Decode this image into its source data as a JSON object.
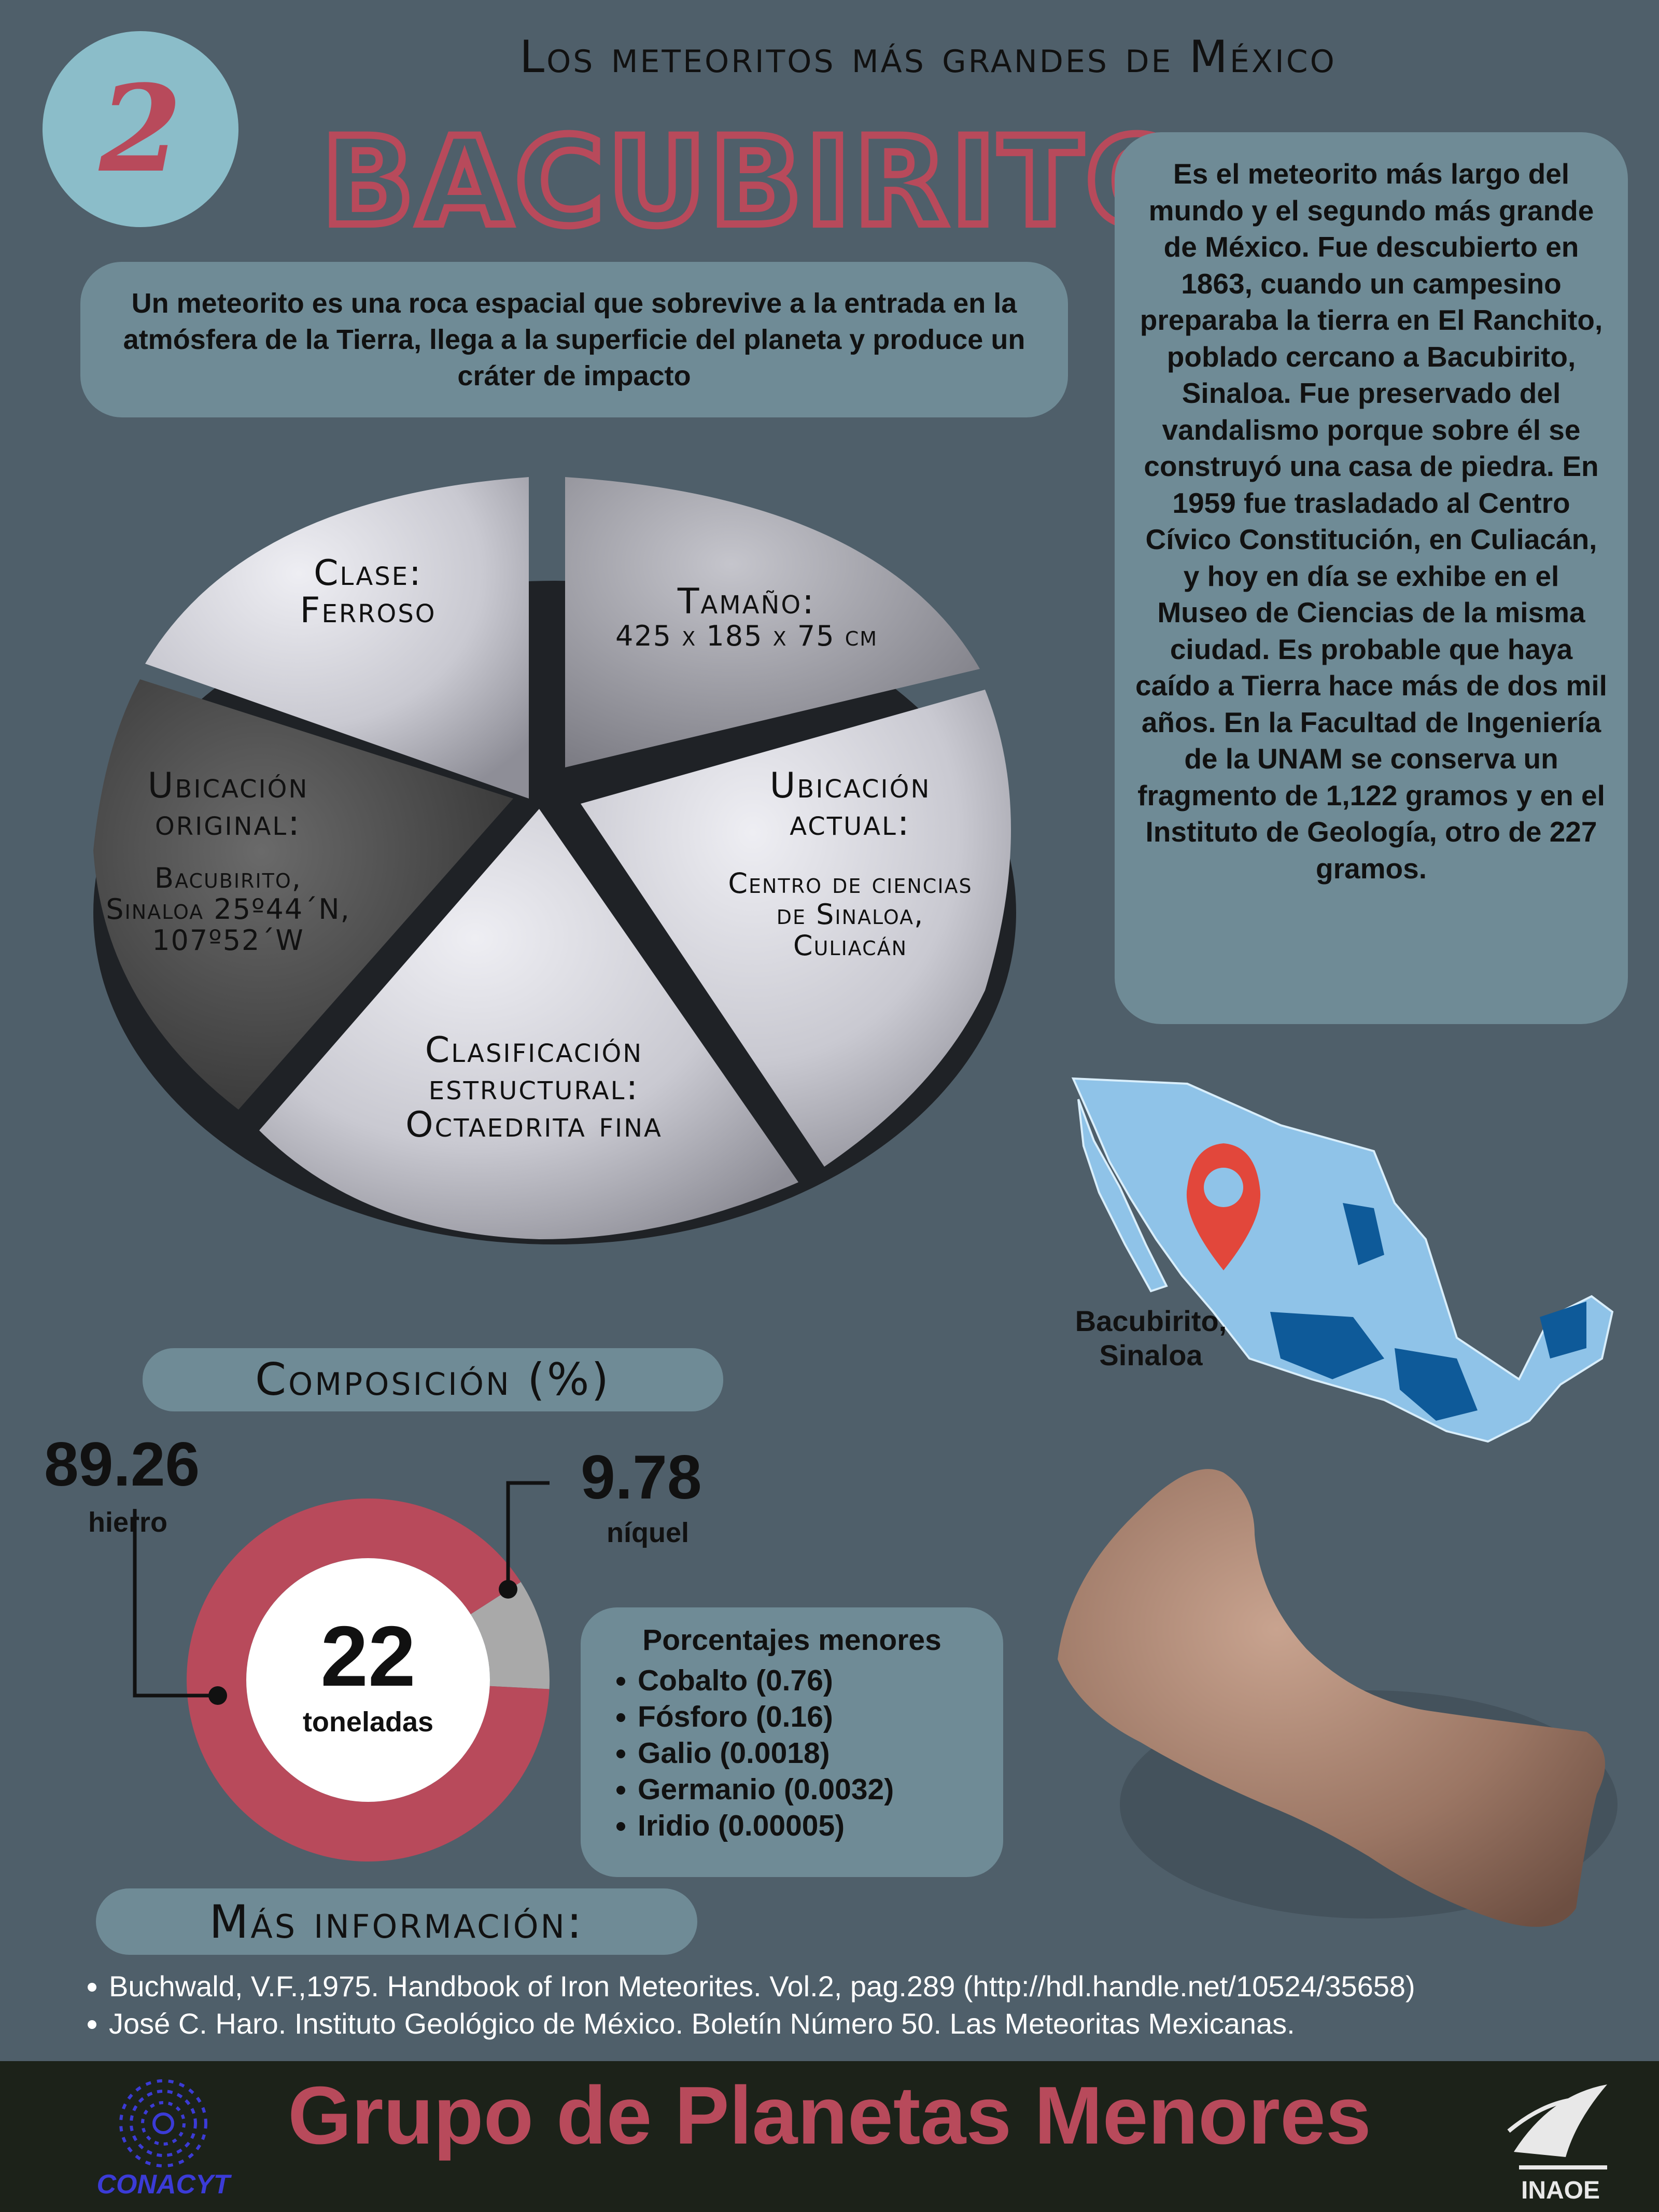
{
  "header": {
    "number": "2",
    "series_title": "Los meteoritos más grandes de México",
    "title": "BACUBIRITO"
  },
  "definition": "Un meteorito es una roca espacial que sobrevive a la entrada en la atmósfera de la Tierra, llega a la superficie del planeta y produce un cráter de impacto",
  "story": "Es el meteorito más largo del mundo y el  segundo más grande de México. Fue descubierto en 1863, cuando un campesino preparaba la tierra en El Ranchito, poblado cercano a Bacubirito, Sinaloa. Fue preservado del vandalismo porque sobre él se construyó una casa de piedra. En 1959 fue trasladado al Centro Cívico Constitución, en Culiacán, y hoy en día se exhibe en el Museo de Ciencias de la misma ciudad. Es probable que haya caído a Tierra hace más de dos mil años. En la Facultad de Ingeniería de la UNAM se conserva un fragmento de 1,122 gramos y en el Instituto de Geología, otro de 227 gramos.",
  "pie": {
    "clase_label": "Clase:",
    "clase_value": "Ferroso",
    "tamano_label": "Tamaño:",
    "tamano_value": "425 x 185 x 75 cm",
    "ubic_actual_label": "Ubicación actual:",
    "ubic_actual_value": "Centro de ciencias de Sinaloa, Culiacán",
    "ubic_original_label": "Ubicación original:",
    "ubic_original_value": "Bacubirito, Sinaloa 25º44´N, 107º52´W",
    "clasif_label": "Clasificación estructural:",
    "clasif_value": "Octaedrita fina"
  },
  "map": {
    "label": "Bacubirito, Sinaloa"
  },
  "composition": {
    "title": "Composición (%)",
    "iron_value": "89.26",
    "iron_label": "hierro",
    "nickel_value": "9.78",
    "nickel_label": "níquel",
    "center_value": "22",
    "center_label": "toneladas",
    "colors": {
      "iron": "#b84a5b",
      "nickel": "#a9a9a9"
    }
  },
  "chart_data": {
    "type": "pie",
    "title": "Composición (%)",
    "categories": [
      "hierro",
      "níquel"
    ],
    "values": [
      89.26,
      9.78
    ]
  },
  "minor": {
    "title": "Porcentajes menores",
    "items": [
      "Cobalto (0.76)",
      "Fósforo (0.16)",
      "Galio (0.0018)",
      "Germanio (0.0032)",
      "Iridio (0.00005)"
    ]
  },
  "more": {
    "title": "Más información:",
    "refs": [
      "Buchwald, V.F.,1975. Handbook of Iron Meteorites. Vol.2, pag.289 (http://hdl.handle.net/10524/35658)",
      "José C. Haro. Instituto Geológico de México. Boletín Número 50. Las Meteoritas Mexicanas."
    ]
  },
  "footer": {
    "title": "Grupo de Planetas Menores",
    "logo_left": "CONACYT",
    "logo_right": "INAOE"
  }
}
